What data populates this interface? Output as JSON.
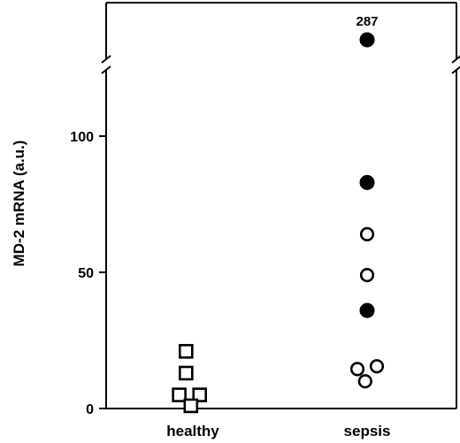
{
  "chart_data": {
    "type": "scatter",
    "ylabel": "MD-2 mRNA (a.u.)",
    "xlabel": "",
    "categories": [
      "healthy",
      "sepsis"
    ],
    "yticks": [
      0,
      50,
      100
    ],
    "ylim": [
      0,
      120
    ],
    "axis_break": true,
    "grid": false,
    "series": [
      {
        "category": "healthy",
        "marker": "open-square",
        "points": [
          {
            "offset": -0.35,
            "y": 21
          },
          {
            "offset": -0.35,
            "y": 13
          },
          {
            "offset": -0.7,
            "y": 5
          },
          {
            "offset": 0.35,
            "y": 5
          },
          {
            "offset": -0.1,
            "y": 1
          }
        ]
      },
      {
        "category": "sepsis",
        "marker": "filled-circle",
        "points": [
          {
            "offset": 0,
            "y": 287
          },
          {
            "offset": 0,
            "y": 83
          },
          {
            "offset": 0,
            "y": 36
          }
        ]
      },
      {
        "category": "sepsis",
        "marker": "open-circle",
        "points": [
          {
            "offset": 0,
            "y": 64
          },
          {
            "offset": 0,
            "y": 49
          },
          {
            "offset": -0.5,
            "y": 14.5
          },
          {
            "offset": 0.5,
            "y": 15.5
          },
          {
            "offset": -0.1,
            "y": 10
          }
        ]
      }
    ],
    "annotations": [
      {
        "text": "287",
        "category": "sepsis",
        "y": 287
      }
    ]
  }
}
